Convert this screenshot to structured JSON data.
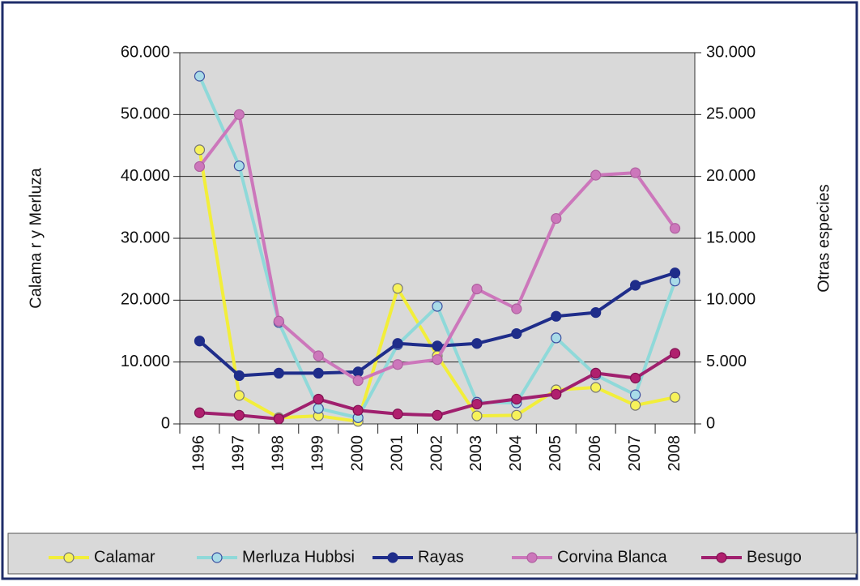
{
  "chart_data": {
    "type": "line",
    "y_label": "Calama r y Merluza",
    "y2_label": "Otras especies",
    "categories": [
      "1996",
      "1997",
      "1998",
      "1999",
      "2000",
      "2001",
      "2002",
      "2003",
      "2004",
      "2005",
      "2006",
      "2007",
      "2008"
    ],
    "ylim": [
      0,
      60000
    ],
    "yticks": [
      0,
      {
        "value": 10000,
        "label": "10.000"
      },
      {
        "value": 20000,
        "label": "20.000"
      },
      {
        "value": 30000,
        "label": "30.000"
      },
      {
        "value": 40000,
        "label": "40.000"
      },
      {
        "value": 50000,
        "label": "50.000"
      },
      {
        "value": 60000,
        "label": "60.000"
      }
    ],
    "y2lim": [
      0,
      30000
    ],
    "y2ticks": [
      0,
      {
        "value": 5000,
        "label": "5.000"
      },
      {
        "value": 10000,
        "label": "10.000"
      },
      {
        "value": 15000,
        "label": "15.000"
      },
      {
        "value": 20000,
        "label": "20.000"
      },
      {
        "value": 25000,
        "label": "25.000"
      },
      {
        "value": 30000,
        "label": "30.000"
      }
    ],
    "grid": true,
    "legend": "bottom",
    "series": [
      {
        "name": "Calamar",
        "color": "#f2ee3a",
        "marker": "#f7f25a",
        "edge": "#777777",
        "values": [
          44300,
          4600,
          1000,
          1300,
          400,
          21900,
          11000,
          1300,
          1400,
          5500,
          5900,
          3000,
          4300
        ]
      },
      {
        "name": "Merluza Hubbsi",
        "color": "#8fd9d9",
        "marker": "#a9dbe8",
        "edge": "#3a4fa0",
        "values": [
          56200,
          41700,
          16400,
          2500,
          1000,
          12800,
          19000,
          3500,
          3400,
          13900,
          7900,
          4700,
          23100
        ]
      },
      {
        "name": "Rayas",
        "color": "#1f2d8a",
        "marker": "#1f2d8a",
        "edge": "#1f2d8a",
        "axis": "y2",
        "values": [
          6700,
          3900,
          4100,
          4100,
          4200,
          6500,
          6300,
          6500,
          7300,
          8700,
          9000,
          11200,
          12200
        ]
      },
      {
        "name": "Corvina Blanca",
        "color": "#cc77bb",
        "marker": "#cc77bb",
        "edge": "#b060a0",
        "axis": "y2",
        "values": [
          20800,
          25000,
          8300,
          5500,
          3500,
          4800,
          5200,
          10900,
          9300,
          16600,
          20100,
          20300,
          15800
        ]
      },
      {
        "name": "Besugo",
        "color": "#a0206e",
        "marker": "#b0206e",
        "edge": "#801050",
        "axis": "y2",
        "values": [
          900,
          700,
          400,
          2000,
          1100,
          800,
          700,
          1600,
          2000,
          2400,
          4100,
          3700,
          5700
        ]
      }
    ]
  }
}
